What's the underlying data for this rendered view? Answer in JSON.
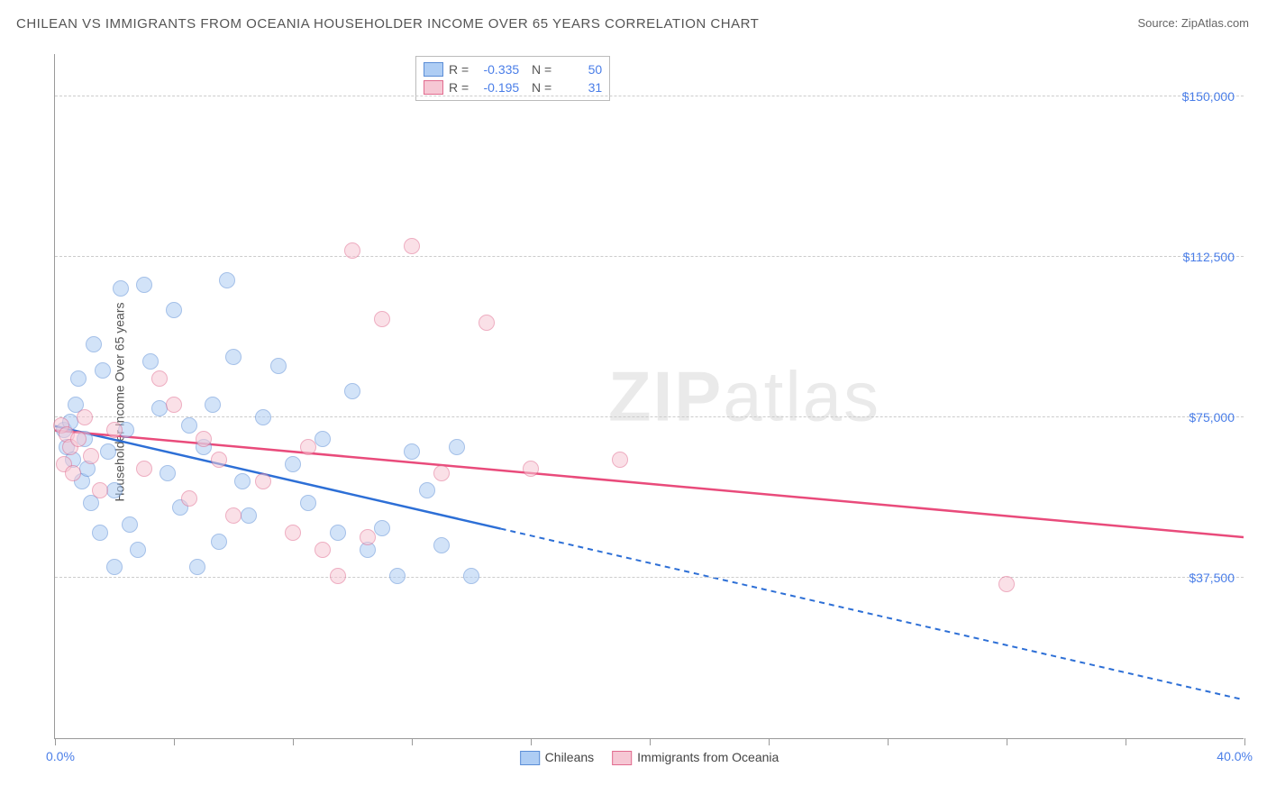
{
  "title": "CHILEAN VS IMMIGRANTS FROM OCEANIA HOUSEHOLDER INCOME OVER 65 YEARS CORRELATION CHART",
  "source": "Source: ZipAtlas.com",
  "ylabel": "Householder Income Over 65 years",
  "watermark_zip": "ZIP",
  "watermark_atlas": "atlas",
  "chart": {
    "type": "scatter",
    "xlim": [
      0,
      40
    ],
    "ylim": [
      0,
      160000
    ],
    "xlabel_min": "0.0%",
    "xlabel_max": "40.0%",
    "xtick_positions": [
      0,
      4,
      8,
      12,
      16,
      20,
      24,
      28,
      32,
      36,
      40
    ],
    "yticks": [
      {
        "v": 37500,
        "label": "$37,500"
      },
      {
        "v": 75000,
        "label": "$75,000"
      },
      {
        "v": 112500,
        "label": "$112,500"
      },
      {
        "v": 150000,
        "label": "$150,000"
      }
    ],
    "background_color": "#ffffff",
    "grid_color": "#cccccc",
    "axis_color": "#999999",
    "tick_label_color": "#4a7ee8",
    "point_radius": 9,
    "point_opacity": 0.55,
    "series": [
      {
        "name": "Chileans",
        "fill": "#aecdf4",
        "stroke": "#5b8dd6",
        "r": "-0.335",
        "n": "50",
        "trend": {
          "x1": 0,
          "y1": 73000,
          "x2": 15,
          "y2": 49000,
          "dash_x2": 40,
          "dash_y2": 9000,
          "color": "#2d6fd6",
          "width": 2.5
        },
        "points": [
          [
            0.3,
            72000
          ],
          [
            0.4,
            68000
          ],
          [
            0.5,
            74000
          ],
          [
            0.6,
            65000
          ],
          [
            0.7,
            78000
          ],
          [
            0.8,
            84000
          ],
          [
            0.9,
            60000
          ],
          [
            1.0,
            70000
          ],
          [
            1.1,
            63000
          ],
          [
            1.2,
            55000
          ],
          [
            1.3,
            92000
          ],
          [
            1.5,
            48000
          ],
          [
            1.6,
            86000
          ],
          [
            1.8,
            67000
          ],
          [
            2.0,
            58000
          ],
          [
            2.2,
            105000
          ],
          [
            2.4,
            72000
          ],
          [
            2.5,
            50000
          ],
          [
            2.8,
            44000
          ],
          [
            3.0,
            106000
          ],
          [
            3.2,
            88000
          ],
          [
            3.5,
            77000
          ],
          [
            3.8,
            62000
          ],
          [
            4.0,
            100000
          ],
          [
            4.2,
            54000
          ],
          [
            4.5,
            73000
          ],
          [
            4.8,
            40000
          ],
          [
            5.0,
            68000
          ],
          [
            5.3,
            78000
          ],
          [
            5.5,
            46000
          ],
          [
            5.8,
            107000
          ],
          [
            6.0,
            89000
          ],
          [
            6.3,
            60000
          ],
          [
            6.5,
            52000
          ],
          [
            7.0,
            75000
          ],
          [
            7.5,
            87000
          ],
          [
            8.0,
            64000
          ],
          [
            8.5,
            55000
          ],
          [
            9.0,
            70000
          ],
          [
            9.5,
            48000
          ],
          [
            10.0,
            81000
          ],
          [
            10.5,
            44000
          ],
          [
            11.0,
            49000
          ],
          [
            11.5,
            38000
          ],
          [
            12.0,
            67000
          ],
          [
            12.5,
            58000
          ],
          [
            13.0,
            45000
          ],
          [
            13.5,
            68000
          ],
          [
            14.0,
            38000
          ],
          [
            2.0,
            40000
          ]
        ]
      },
      {
        "name": "Immigrants from Oceania",
        "fill": "#f6c7d4",
        "stroke": "#e16b8f",
        "r": "-0.195",
        "n": "31",
        "trend": {
          "x1": 0,
          "y1": 72000,
          "x2": 40,
          "y2": 47000,
          "dash_x2": null,
          "dash_y2": null,
          "color": "#e94b7b",
          "width": 2.5
        },
        "points": [
          [
            0.2,
            73000
          ],
          [
            0.3,
            64000
          ],
          [
            0.4,
            71000
          ],
          [
            0.5,
            68000
          ],
          [
            0.6,
            62000
          ],
          [
            0.8,
            70000
          ],
          [
            1.0,
            75000
          ],
          [
            1.2,
            66000
          ],
          [
            1.5,
            58000
          ],
          [
            2.0,
            72000
          ],
          [
            3.0,
            63000
          ],
          [
            3.5,
            84000
          ],
          [
            4.0,
            78000
          ],
          [
            4.5,
            56000
          ],
          [
            5.0,
            70000
          ],
          [
            5.5,
            65000
          ],
          [
            6.0,
            52000
          ],
          [
            7.0,
            60000
          ],
          [
            8.0,
            48000
          ],
          [
            8.5,
            68000
          ],
          [
            9.0,
            44000
          ],
          [
            9.5,
            38000
          ],
          [
            10.0,
            114000
          ],
          [
            10.5,
            47000
          ],
          [
            11.0,
            98000
          ],
          [
            12.0,
            115000
          ],
          [
            13.0,
            62000
          ],
          [
            14.5,
            97000
          ],
          [
            16.0,
            63000
          ],
          [
            19.0,
            65000
          ],
          [
            32.0,
            36000
          ]
        ]
      }
    ]
  }
}
